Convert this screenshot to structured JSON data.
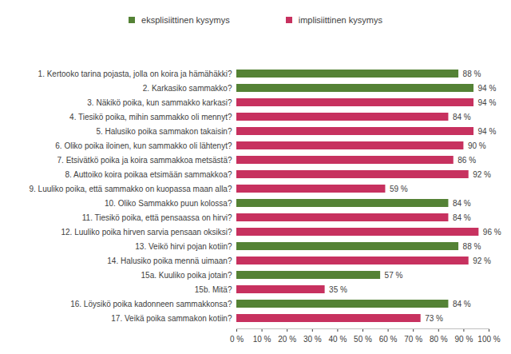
{
  "chart_data": {
    "type": "bar",
    "orientation": "horizontal",
    "categories": [
      "1. Kertooko tarina pojasta, jolla on koira ja hämähäkki?",
      "2. Karkasiko sammakko?",
      "3. Näkikö poika, kun sammakko karkasi?",
      "4. Tiesikö poika, mihin sammakko oli mennyt?",
      "5. Halusiko poika sammakon takaisin?",
      "6. Oliko poika iloinen, kun sammakko oli lähtenyt?",
      "7. Etsivätkö poika ja koira sammakkoa metsästä?",
      "8. Auttoiko koira poikaa etsimään sammakkoa?",
      "9. Luuliko poika, että sammakko on kuopassa maan alla?",
      "10. Oliko Sammakko puun kolossa?",
      "11. Tiesikö poika, että pensaassa on hirvi?",
      "12. Luuliko poika hirven sarvia pensaan oksiksi?",
      "13. Veikö hirvi pojan kotiin?",
      "14. Halusiko poika mennä uimaan?",
      "15a. Kuuliko poika jotain?",
      "15b. Mitä?",
      "16. Löysikö poika kadonneen sammakkonsa?",
      "17. Veikä poika sammakon kotiin?"
    ],
    "series": [
      {
        "name": "eksplisiittinen kysymys",
        "color": "#548235",
        "values": [
          88,
          94,
          null,
          null,
          null,
          null,
          null,
          null,
          null,
          84,
          null,
          null,
          88,
          null,
          57,
          null,
          84,
          null
        ],
        "value_labels": [
          "88 %",
          "94 %",
          null,
          null,
          null,
          null,
          null,
          null,
          null,
          "84 %",
          null,
          null,
          "88 %",
          null,
          "57 %",
          null,
          "84 %",
          null
        ]
      },
      {
        "name": "implisiittinen kysymys",
        "color": "#c7315f",
        "values": [
          null,
          null,
          94,
          84,
          94,
          90,
          86,
          92,
          59,
          null,
          84,
          96,
          null,
          92,
          null,
          35,
          null,
          73
        ],
        "value_labels": [
          null,
          null,
          "94 %",
          "84 %",
          "94 %",
          "90 %",
          "86 %",
          "92 %",
          "59 %",
          null,
          "84 %",
          "96 %",
          null,
          "92 %",
          null,
          "35 %",
          null,
          "73 %"
        ]
      }
    ],
    "xlim": [
      0,
      100
    ],
    "xticks": [
      {
        "value": 0,
        "label": "0 %"
      },
      {
        "value": 10,
        "label": "10 %"
      },
      {
        "value": 20,
        "label": "20 %"
      },
      {
        "value": 30,
        "label": "30 %"
      },
      {
        "value": 40,
        "label": "40 %"
      },
      {
        "value": 50,
        "label": "50 %"
      },
      {
        "value": 60,
        "label": "60 %"
      },
      {
        "value": 70,
        "label": "70 %"
      },
      {
        "value": 80,
        "label": "80 %"
      },
      {
        "value": 90,
        "label": "90 %"
      },
      {
        "value": 100,
        "label": "100 %"
      }
    ],
    "grid": false,
    "legend": "top",
    "data_labels": true
  }
}
